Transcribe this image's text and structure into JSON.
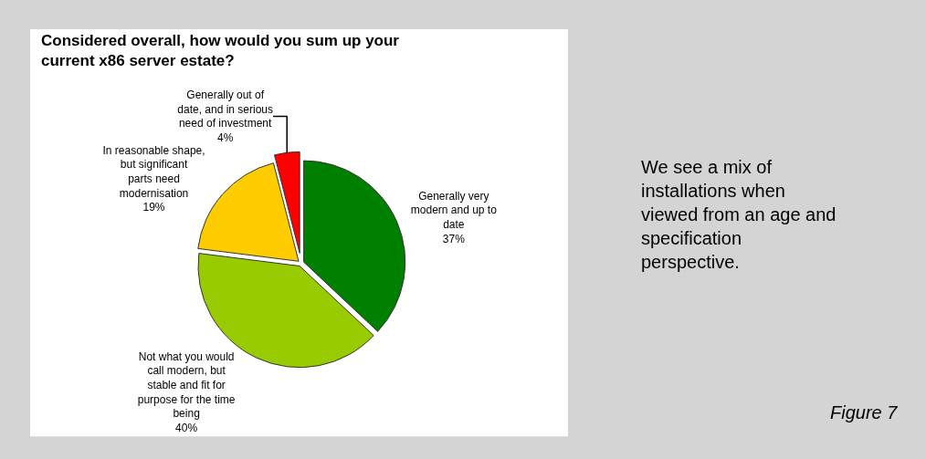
{
  "chart_data": {
    "type": "pie",
    "title": "Considered overall, how would you sum up your current x86 server estate?",
    "categories": [
      "Generally very modern and up to date",
      "Not what you would call modern, but stable and fit for purpose for the time being",
      "In reasonable shape, but significant parts need modernisation",
      "Generally out of date, and in serious need of investment"
    ],
    "values": [
      37,
      40,
      19,
      4
    ],
    "value_labels": [
      "37%",
      "40%",
      "19%",
      "4%"
    ],
    "colors": [
      "#008000",
      "#99cc00",
      "#ffcc00",
      "#ff0000"
    ],
    "legend": false,
    "annotations": [
      "We see a mix of installations when viewed from an age and specification perspective.",
      "Figure 7"
    ]
  }
}
